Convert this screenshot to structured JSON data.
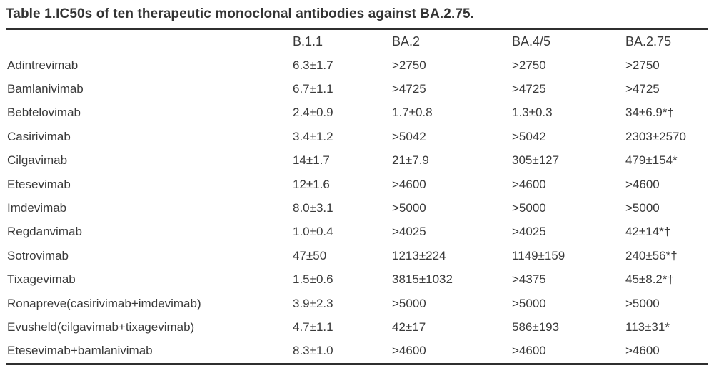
{
  "table": {
    "title": "Table 1.IC50s of ten therapeutic monoclonal antibodies against BA.2.75.",
    "columns": [
      "",
      "B.1.1",
      "BA.2",
      "BA.4/5",
      "BA.2.75"
    ],
    "rows": [
      {
        "name": "Adintrevimab",
        "values": [
          "6.3±1.7",
          ">2750",
          ">2750",
          ">2750"
        ]
      },
      {
        "name": "Bamlanivimab",
        "values": [
          "6.7±1.1",
          ">4725",
          ">4725",
          ">4725"
        ]
      },
      {
        "name": "Bebtelovimab",
        "values": [
          "2.4±0.9",
          "1.7±0.8",
          "1.3±0.3",
          "34±6.9*†"
        ]
      },
      {
        "name": "Casirivimab",
        "values": [
          "3.4±1.2",
          ">5042",
          ">5042",
          "2303±2570"
        ]
      },
      {
        "name": "Cilgavimab",
        "values": [
          "14±1.7",
          "21±7.9",
          "305±127",
          "479±154*"
        ]
      },
      {
        "name": "Etesevimab",
        "values": [
          "12±1.6",
          ">4600",
          ">4600",
          ">4600"
        ]
      },
      {
        "name": "Imdevimab",
        "values": [
          "8.0±3.1",
          ">5000",
          ">5000",
          ">5000"
        ]
      },
      {
        "name": "Regdanvimab",
        "values": [
          "1.0±0.4",
          ">4025",
          ">4025",
          "42±14*†"
        ]
      },
      {
        "name": "Sotrovimab",
        "values": [
          "47±50",
          "1213±224",
          "1149±159",
          "240±56*†"
        ]
      },
      {
        "name": "Tixagevimab",
        "values": [
          "1.5±0.6",
          "3815±1032",
          ">4375",
          "45±8.2*†"
        ]
      },
      {
        "name": "Ronapreve(casirivimab+imdevimab)",
        "values": [
          "3.9±2.3",
          ">5000",
          ">5000",
          ">5000"
        ]
      },
      {
        "name": "Evusheld(cilgavimab+tixagevimab)",
        "values": [
          "4.7±1.1",
          "42±17",
          "586±193",
          "113±31*"
        ]
      },
      {
        "name": "Etesevimab+bamlanivimab",
        "values": [
          "8.3±1.0",
          ">4600",
          ">4600",
          ">4600"
        ]
      }
    ]
  },
  "colors": {
    "text": "#3a3a3a",
    "title_text": "#333333",
    "rule_heavy": "#2f2f2f",
    "rule_light": "#b8b8b8",
    "background": "#ffffff"
  }
}
